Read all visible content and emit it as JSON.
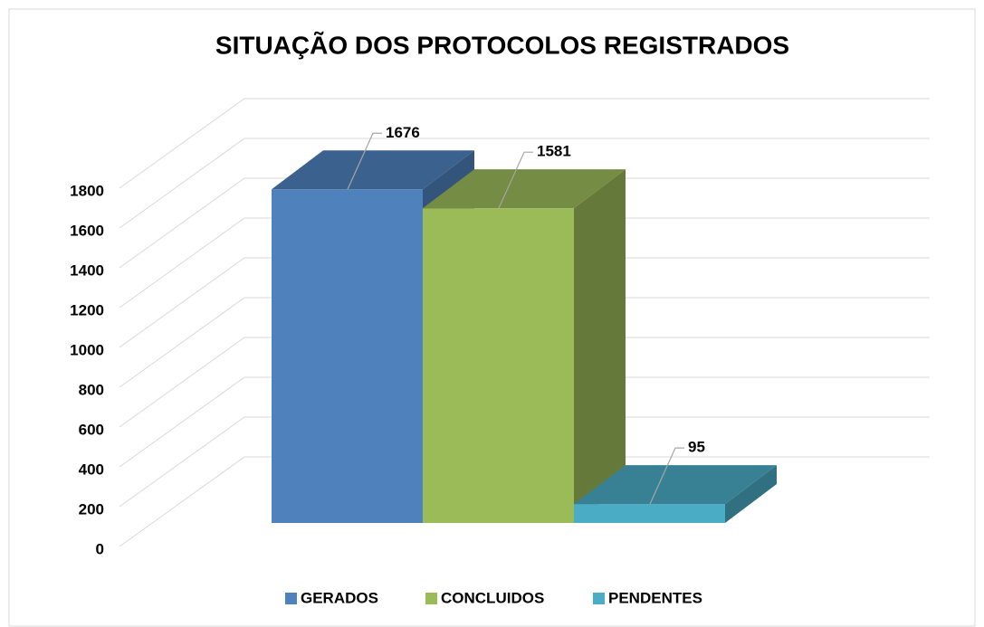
{
  "chart_data": {
    "type": "bar3d",
    "title": "SITUAÇÃO DOS PROTOCOLOS REGISTRADOS",
    "series": [
      {
        "name": "GERADOS",
        "color": "#4f81bd",
        "values": [
          1676
        ]
      },
      {
        "name": "CONCLUIDOS",
        "color": "#9bbb59",
        "values": [
          1581
        ]
      },
      {
        "name": "PENDENTES",
        "color": "#4bacc6",
        "values": [
          95
        ]
      }
    ],
    "ylim": [
      0,
      1800
    ],
    "yticks": [
      0,
      200,
      400,
      600,
      800,
      1000,
      1200,
      1400,
      1600,
      1800
    ],
    "grid": true,
    "legend": "bottom"
  }
}
